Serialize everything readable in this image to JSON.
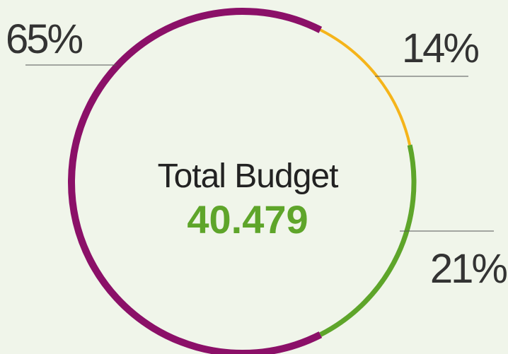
{
  "chart_data": {
    "type": "donut",
    "title": "Total Budget",
    "center_value": "40.479",
    "values": [
      14,
      21,
      65
    ],
    "value_labels": [
      "14%",
      "21%",
      "65%"
    ],
    "colors": [
      "#f5b41a",
      "#5ea52a",
      "#8b1068"
    ],
    "center_value_color": "#5ea52a"
  }
}
